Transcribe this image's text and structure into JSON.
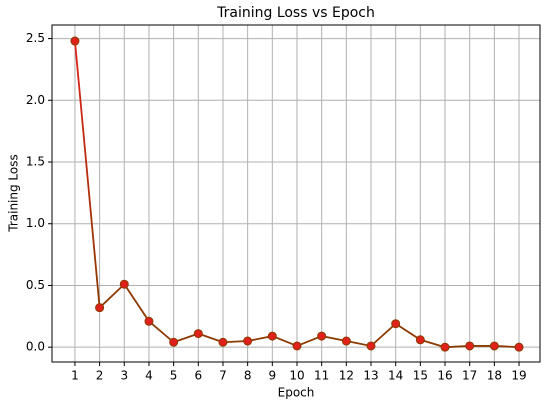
{
  "chart_data": {
    "type": "line",
    "title": "Training Loss vs Epoch",
    "x_label": "Epoch",
    "y_label": "Training Loss",
    "x": [
      1,
      2,
      3,
      4,
      5,
      6,
      7,
      8,
      9,
      10,
      11,
      12,
      13,
      14,
      15,
      16,
      17,
      18,
      19
    ],
    "series": [
      {
        "name": "Training Loss",
        "color": "#8b3a00",
        "marker_color": "#e0201a",
        "values": [
          2.48,
          0.32,
          0.51,
          0.21,
          0.04,
          0.11,
          0.04,
          0.05,
          0.09,
          0.01,
          0.09,
          0.05,
          0.01,
          0.19,
          0.06,
          0.0,
          0.01,
          0.01,
          0.0
        ]
      }
    ],
    "xlim": [
      0.07,
      19.85
    ],
    "ylim": [
      -0.12,
      2.61
    ],
    "xticks": [
      1,
      2,
      3,
      4,
      5,
      6,
      7,
      8,
      9,
      10,
      11,
      12,
      13,
      14,
      15,
      16,
      17,
      18,
      19
    ],
    "yticks": [
      {
        "value": 0,
        "label": "0.0"
      },
      {
        "value": 0.5,
        "label": "0.5"
      },
      {
        "value": 1,
        "label": "1.0"
      },
      {
        "value": 1.5,
        "label": "1.5"
      },
      {
        "value": 2,
        "label": "2.0"
      },
      {
        "value": 2.5,
        "label": "2.5"
      }
    ],
    "grid": true
  }
}
